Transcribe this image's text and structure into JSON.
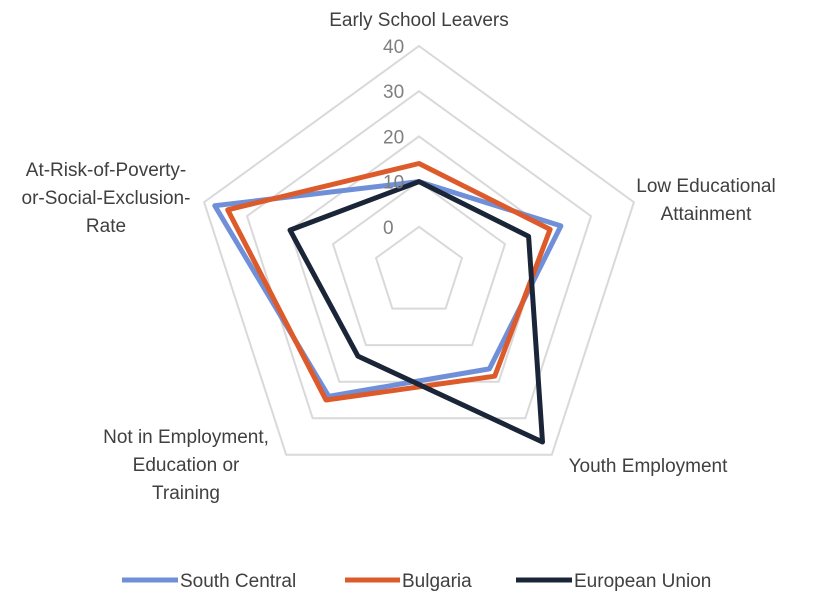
{
  "chart_data": {
    "type": "radar",
    "categories": [
      "Early School Leavers",
      "Low Educational Attainment",
      "Youth Employment",
      "Not in Employment, Education or Training",
      "At-Risk-of-Poverty-or-Social-Exclusion-Rate"
    ],
    "category_lines": [
      [
        "Early School Leavers"
      ],
      [
        "Low Educational",
        "Attainment"
      ],
      [
        "Youth Employment"
      ],
      [
        "Not in Employment,",
        "Education or",
        "Training"
      ],
      [
        "At-Risk-of-Poverty-",
        "or-Social-Exclusion-",
        "Rate"
      ]
    ],
    "series": [
      {
        "name": "South Central",
        "color": "#6F8FD8",
        "values": [
          10,
          23,
          16.5,
          24,
          37.5
        ]
      },
      {
        "name": "Bulgaria",
        "color": "#DD5A2B",
        "values": [
          14,
          20.5,
          18.5,
          25,
          34.5
        ]
      },
      {
        "name": "European Union",
        "color": "#1B2538",
        "values": [
          10,
          15.5,
          36.5,
          13,
          20
        ]
      }
    ],
    "r_ticks": [
      0,
      10,
      20,
      30,
      40
    ],
    "r_range": [
      -10,
      40
    ],
    "grid": true,
    "legend": "bottom"
  }
}
